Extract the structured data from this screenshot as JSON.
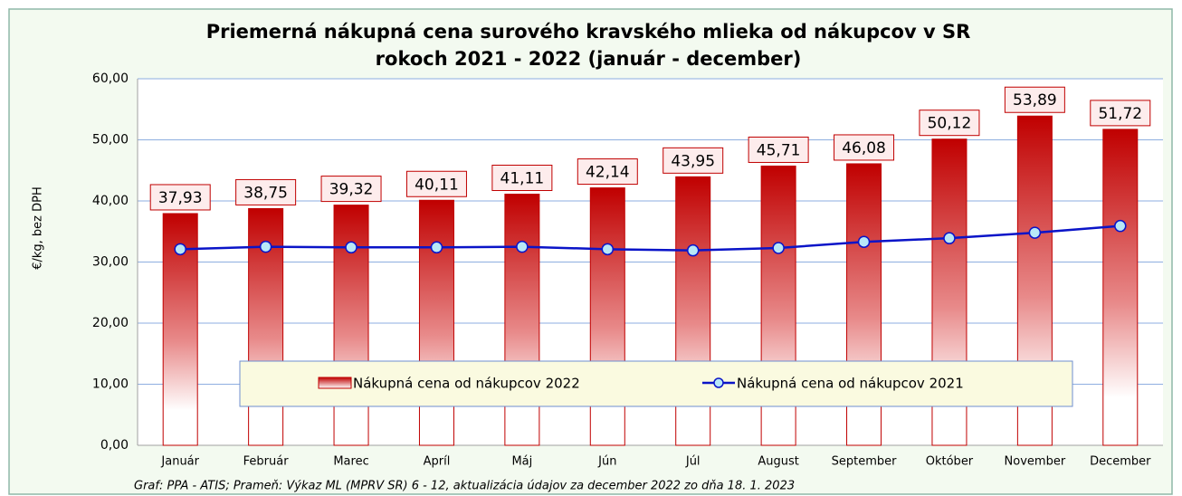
{
  "chart_data": {
    "type": "bar",
    "title": [
      "Priemerná nákupná cena surového kravského mlieka od nákupcov v SR",
      "rokoch 2021 - 2022 (január - december)"
    ],
    "y_label": "€/kg, bez DPH",
    "source": "Graf: PPA - ATIS; Prameň: Výkaz ML (MPRV SR) 6 - 12, aktualizácia údajov za december 2022 zo dňa 18. 1. 2023",
    "categories": [
      "Január",
      "Február",
      "Marec",
      "Apríl",
      "Máj",
      "Jún",
      "Júl",
      "August",
      "September",
      "Október",
      "November",
      "December"
    ],
    "series": [
      {
        "name": "Nákupná cena od nákupcov 2022",
        "type": "bar",
        "color": "#c00000",
        "values": [
          37.93,
          38.75,
          39.32,
          40.11,
          41.11,
          42.14,
          43.95,
          45.71,
          46.08,
          50.12,
          53.89,
          51.72
        ],
        "value_labels": [
          "37,93",
          "38,75",
          "39,32",
          "40,11",
          "41,11",
          "42,14",
          "43,95",
          "45,71",
          "46,08",
          "50,12",
          "53,89",
          "51,72"
        ]
      },
      {
        "name": "Nákupná cena od nákupcov 2021",
        "type": "line",
        "color": "#0a14c8",
        "values": [
          32.1,
          32.5,
          32.4,
          32.4,
          32.5,
          32.1,
          31.9,
          32.3,
          33.3,
          33.9,
          34.8,
          35.9
        ]
      }
    ],
    "ylim": [
      0,
      60
    ],
    "yticks": [
      {
        "value": 0,
        "label": "0,00"
      },
      {
        "value": 10,
        "label": "10,00"
      },
      {
        "value": 20,
        "label": "20,00"
      },
      {
        "value": 30,
        "label": "30,00"
      },
      {
        "value": 40,
        "label": "40,00"
      },
      {
        "value": 50,
        "label": "50,00"
      },
      {
        "value": 60,
        "label": "60,00"
      }
    ],
    "grid": true,
    "legend": "bottom"
  }
}
